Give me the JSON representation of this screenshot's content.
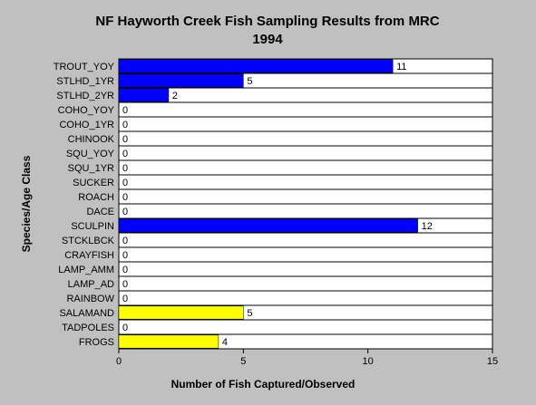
{
  "chart_data": {
    "type": "hbar",
    "title": "NF Hayworth Creek Fish Sampling Results from MRC",
    "subtitle": "1994",
    "x_label": "Number of Fish Captured/Observed",
    "y_label": "Species/Age Class",
    "categories": [
      "TROUT_YOY",
      "STLHD_1YR",
      "STLHD_2YR",
      "COHO_YOY",
      "COHO_1YR",
      "CHINOOK",
      "SQU_YOY",
      "SQU_1YR",
      "SUCKER",
      "ROACH",
      "DACE",
      "SCULPIN",
      "STCKLBCK",
      "CRAYFISH",
      "LAMP_AMM",
      "LAMP_AD",
      "RAINBOW",
      "SALAMAND",
      "TADPOLES",
      "FROGS"
    ],
    "values": [
      11,
      5,
      2,
      0,
      0,
      0,
      0,
      0,
      0,
      0,
      0,
      12,
      0,
      0,
      0,
      0,
      0,
      5,
      0,
      4
    ],
    "colors": [
      "#0000ff",
      "#0000ff",
      "#0000ff",
      "#0000ff",
      "#0000ff",
      "#0000ff",
      "#0000ff",
      "#0000ff",
      "#0000ff",
      "#0000ff",
      "#0000ff",
      "#0000ff",
      "#0000ff",
      "#0000ff",
      "#0000ff",
      "#0000ff",
      "#0000ff",
      "#ffff00",
      "#ffff00",
      "#ffff00"
    ],
    "xlim": [
      0,
      15
    ],
    "xticks": [
      0,
      5,
      10,
      15
    ]
  }
}
